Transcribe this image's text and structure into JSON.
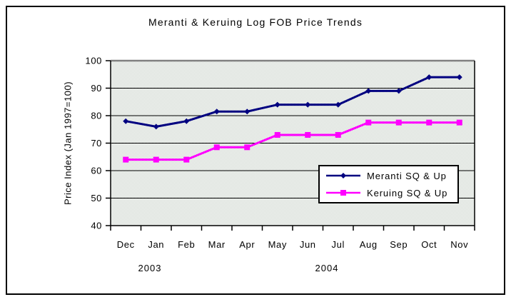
{
  "chart_data": {
    "type": "line",
    "title": "Meranti & Keruing Log FOB Price Trends",
    "ylabel": "Price Index (Jan 1997=100)",
    "categories": [
      "Dec",
      "Jan",
      "Feb",
      "Mar",
      "Apr",
      "May",
      "Jun",
      "Jul",
      "Aug",
      "Sep",
      "Oct",
      "Nov"
    ],
    "year_labels": [
      "2003",
      "2004"
    ],
    "ylim": [
      40,
      100
    ],
    "yticks": [
      40,
      50,
      60,
      70,
      80,
      90,
      100
    ],
    "grid": true,
    "legend_position": "inside-bottom-right",
    "series": [
      {
        "name": "Meranti SQ & Up",
        "color": "#000080",
        "marker": "diamond",
        "values": [
          78,
          76,
          78,
          81.5,
          81.5,
          84,
          84,
          84,
          89,
          89,
          94,
          94
        ]
      },
      {
        "name": "Keruing SQ & Up",
        "color": "#ff00ff",
        "marker": "square",
        "values": [
          64,
          64,
          64,
          68.5,
          68.5,
          73,
          73,
          73,
          77.5,
          77.5,
          77.5,
          77.5
        ]
      }
    ],
    "colors": {
      "plot_bg_light": "#ffffff",
      "plot_bg_dark": "#ccd4cc",
      "gridline": "#000000",
      "plot_top_border": "#808080",
      "axis": "#000000"
    }
  }
}
